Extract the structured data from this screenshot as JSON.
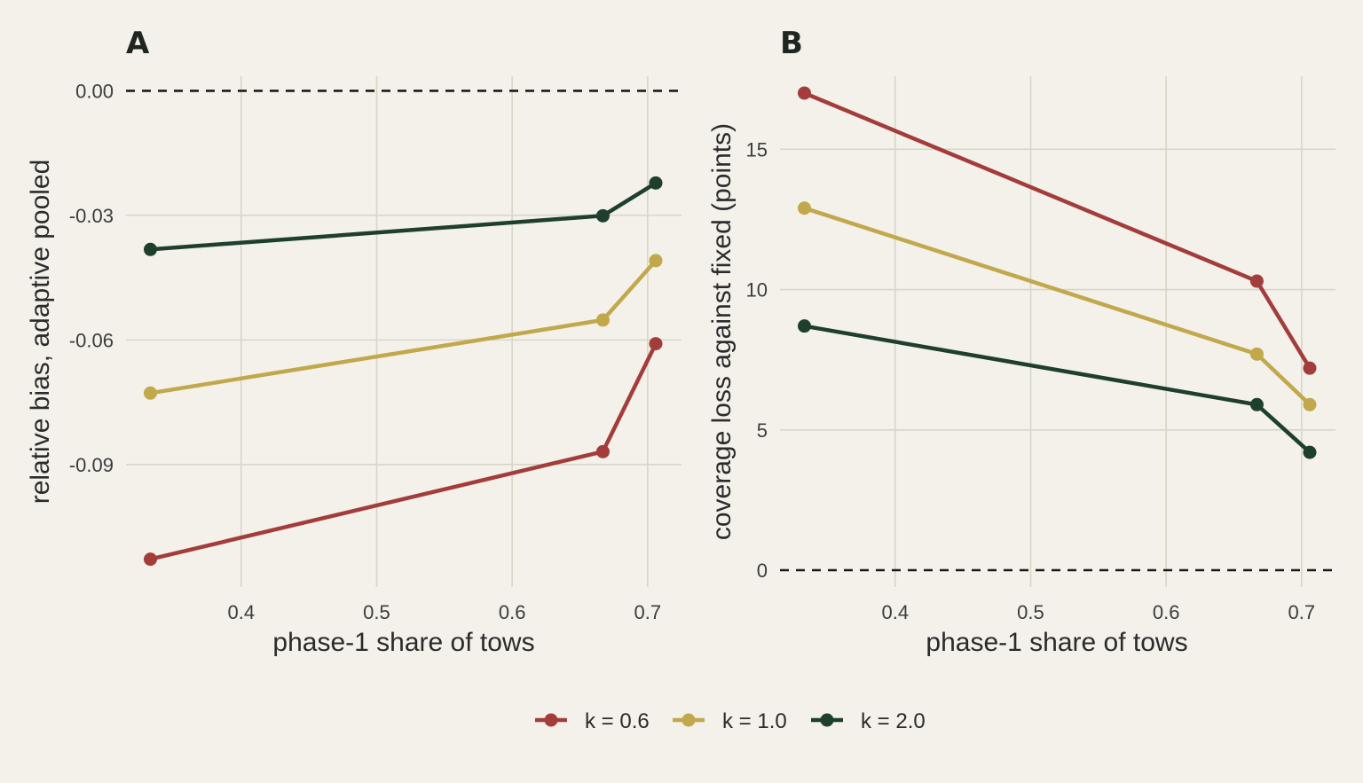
{
  "chart_data": [
    {
      "panel": "A",
      "type": "line",
      "xlabel": "phase-1 share of tows",
      "ylabel": "relative bias, adaptive pooled",
      "xlim": [
        0.315,
        0.725
      ],
      "ylim": [
        -0.1195,
        0.0035
      ],
      "xticks": [
        0.4,
        0.5,
        0.6,
        0.7
      ],
      "xtick_labels": [
        "0.4",
        "0.5",
        "0.6",
        "0.7"
      ],
      "yticks": [
        0.0,
        -0.03,
        -0.06,
        -0.09
      ],
      "ytick_labels": [
        "0.00",
        "-0.03",
        "-0.06",
        "-0.09"
      ],
      "reference_line": 0.0,
      "grid": true,
      "series": [
        {
          "name": "k = 0.6",
          "color": "#a23d3c",
          "x": [
            0.333,
            0.667,
            0.706
          ],
          "y": [
            -0.1128,
            -0.0869,
            -0.0609
          ]
        },
        {
          "name": "k = 1.0",
          "color": "#c2a84c",
          "x": [
            0.333,
            0.667,
            0.706
          ],
          "y": [
            -0.0728,
            -0.0552,
            -0.0409
          ]
        },
        {
          "name": "k = 2.0",
          "color": "#1f3f2d",
          "x": [
            0.333,
            0.667,
            0.706
          ],
          "y": [
            -0.0382,
            -0.0301,
            -0.0222
          ]
        }
      ]
    },
    {
      "panel": "B",
      "type": "line",
      "xlabel": "phase-1 share of tows",
      "ylabel": "coverage loss against fixed (points)",
      "xlim": [
        0.315,
        0.725
      ],
      "ylim": [
        -0.6,
        17.6
      ],
      "xticks": [
        0.4,
        0.5,
        0.6,
        0.7
      ],
      "xtick_labels": [
        "0.4",
        "0.5",
        "0.6",
        "0.7"
      ],
      "yticks": [
        0,
        5,
        10,
        15
      ],
      "ytick_labels": [
        "0",
        "5",
        "10",
        "15"
      ],
      "reference_line": 0,
      "grid": true,
      "series": [
        {
          "name": "k = 0.6",
          "color": "#a23d3c",
          "x": [
            0.333,
            0.667,
            0.706
          ],
          "y": [
            17.0,
            10.3,
            7.2
          ]
        },
        {
          "name": "k = 1.0",
          "color": "#c2a84c",
          "x": [
            0.333,
            0.667,
            0.706
          ],
          "y": [
            12.9,
            7.7,
            5.9
          ]
        },
        {
          "name": "k = 2.0",
          "color": "#1f3f2d",
          "x": [
            0.333,
            0.667,
            0.706
          ],
          "y": [
            8.7,
            5.9,
            4.2
          ]
        }
      ]
    }
  ],
  "legend": {
    "position": "bottom",
    "items": [
      {
        "label": "k = 0.6",
        "color": "#a23d3c"
      },
      {
        "label": "k = 1.0",
        "color": "#c2a84c"
      },
      {
        "label": "k = 2.0",
        "color": "#1f3f2d"
      }
    ]
  }
}
